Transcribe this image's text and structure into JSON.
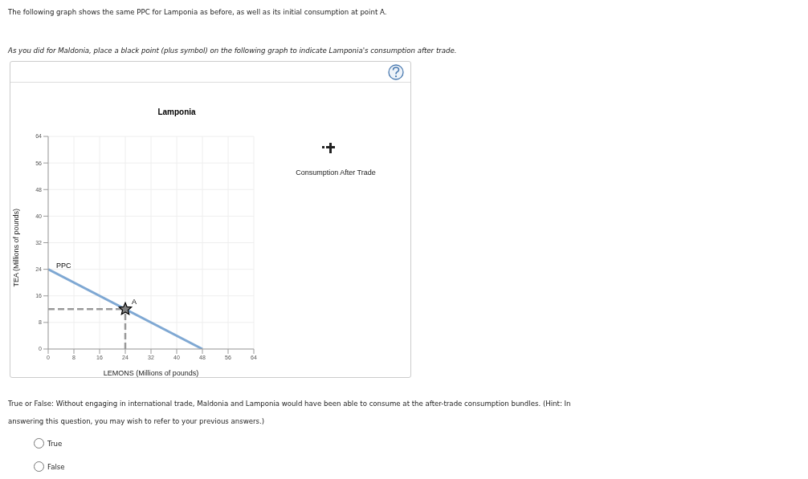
{
  "chart_data": {
    "type": "line",
    "title": "Lamponia",
    "xlabel": "LEMONS (Millions of pounds)",
    "ylabel": "TEA (Millions of pounds)",
    "xlim": [
      0,
      64
    ],
    "xticks": [
      0,
      8,
      16,
      24,
      32,
      40,
      48,
      56,
      64
    ],
    "ylim": [
      0,
      64
    ],
    "yticks": [
      0,
      8,
      16,
      24,
      32,
      40,
      48,
      56,
      64
    ],
    "grid": true,
    "legend": false,
    "series": [
      {
        "name": "PPC",
        "x": [
          0,
          48
        ],
        "values": [
          24,
          0
        ],
        "color": "#7fa8d3",
        "line_style": "solid"
      },
      {
        "x": [
          0,
          24
        ],
        "values": [
          12,
          12
        ],
        "color": "#999999",
        "line_style": "dashed"
      },
      {
        "x": [
          24,
          24
        ],
        "values": [
          0,
          12
        ],
        "color": "#999999",
        "line_style": "dashed"
      },
      {
        "type": "scatter",
        "x": [
          24
        ],
        "values": [
          12
        ],
        "color": "#808080",
        "marker": "star"
      }
    ],
    "annotations": [
      {
        "text": "A",
        "x": 24,
        "y": 12
      },
      "The following graph shows the same PPC for Lamponia as before, as well as its initial consumption at point A.",
      "As you did for Maldonia, place a black point (plus symbol) on the following graph to indicate Lamponia's consumption after trade.",
      "Consumption After Trade",
      "True or False: Without engaging in international trade, Maldonia and Lamponia would have been able to consume at the after-trade consumption bundles. (Hint: In answering this question, you may wish to refer to your previous answers.)",
      "True",
      "False"
    ]
  }
}
